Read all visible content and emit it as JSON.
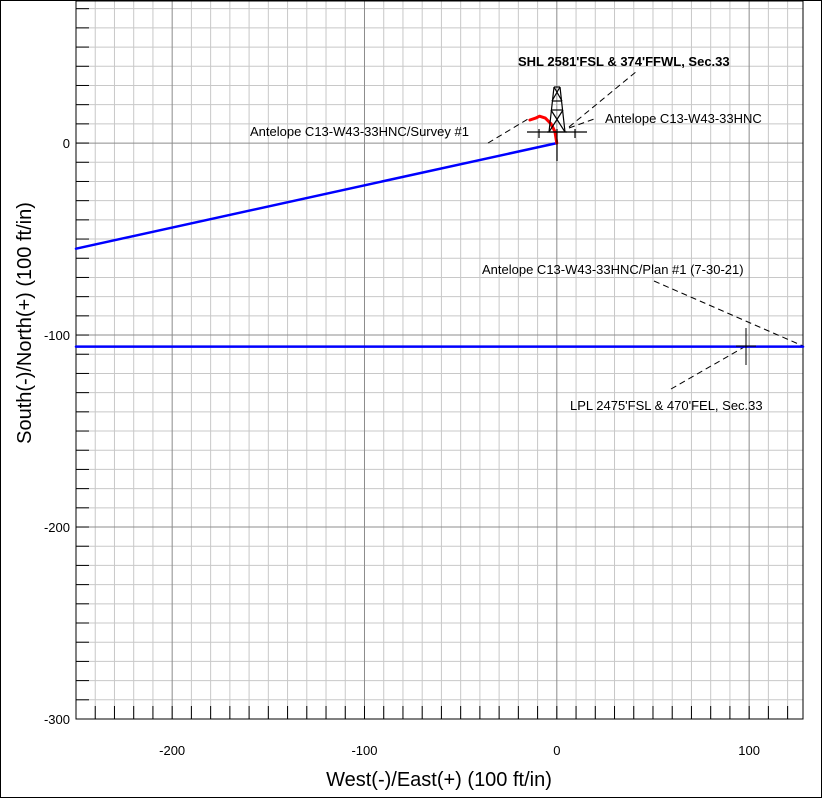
{
  "chart_data": {
    "type": "line",
    "xlabel": "West(-)/East(+) (100 ft/in)",
    "ylabel": "South(-)/North(+) (100 ft/in)",
    "xlim": [
      -250,
      128
    ],
    "ylim": [
      -300,
      74
    ],
    "x_ticks": [
      -200,
      -100,
      0,
      100
    ],
    "y_ticks": [
      0,
      -100,
      -200,
      -300
    ],
    "grid": true,
    "series": [
      {
        "name": "Antelope C13-W43-33HNC/Survey #1",
        "color": "#0000ff",
        "x": [
          0,
          -250
        ],
        "y": [
          0,
          -55
        ]
      },
      {
        "name": "Antelope C13-W43-33HNC/Plan #1 (7-30-21)",
        "color": "#0000ff",
        "x": [
          -250,
          128
        ],
        "y": [
          -106,
          -106
        ]
      },
      {
        "name": "Antelope C13-W43-33HNC/Survey #1",
        "color": "#ff0000",
        "x": [
          0,
          -1,
          -3,
          -6,
          -9,
          -11,
          -14
        ],
        "y": [
          0,
          6,
          10,
          13,
          14,
          13,
          12
        ]
      }
    ],
    "annotations": [
      {
        "text": "SHL 2581'FSL & 374'FFWL, Sec.33",
        "bold": true
      },
      {
        "text": "Antelope C13-W43-33HNC/Survey #1",
        "bold": false
      },
      {
        "text": "Antelope C13-W43-33HNC",
        "bold": false
      },
      {
        "text": "Antelope C13-W43-33HNC/Plan #1 (7-30-21)",
        "bold": false
      },
      {
        "text": "LPL 2475'FSL & 470'FEL, Sec.33",
        "bold": false
      }
    ]
  }
}
